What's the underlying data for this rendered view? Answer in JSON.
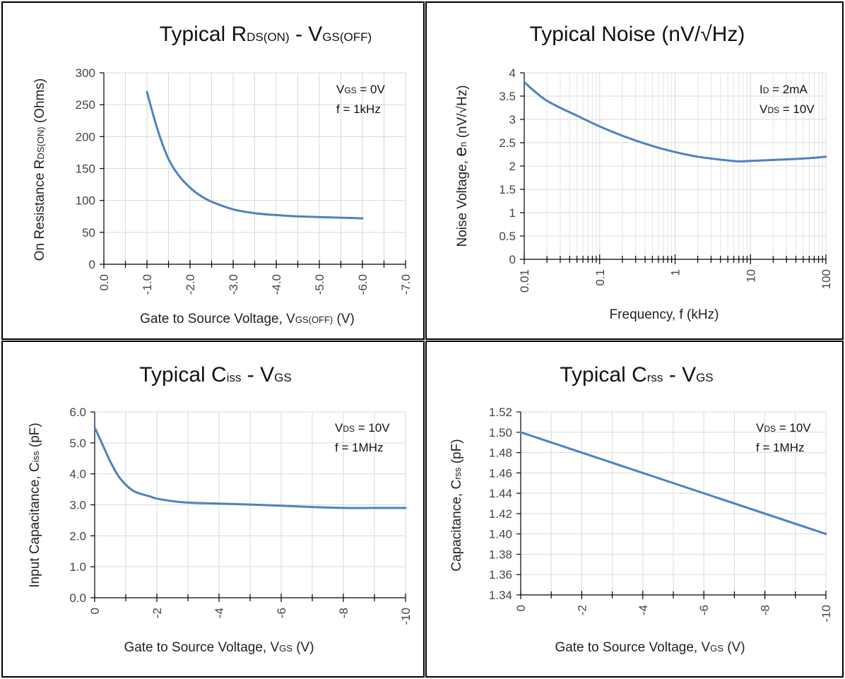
{
  "colors": {
    "series": "#4f81bd",
    "frame": "#000000",
    "grid": "#d9d9d9"
  },
  "chart_data": [
    {
      "id": "rds",
      "type": "line",
      "title_parts": [
        {
          "t": "Typical R",
          "sub": false
        },
        {
          "t": "DS(ON)",
          "sub": true
        },
        {
          "t": " - V",
          "sub": false
        },
        {
          "t": "GS(OFF)",
          "sub": true
        }
      ],
      "xlabel_parts": [
        {
          "t": "Gate to Source Voltage, V",
          "sub": false
        },
        {
          "t": "GS(OFF)",
          "sub": true
        },
        {
          "t": " (V)",
          "sub": false
        }
      ],
      "ylabel_parts": [
        {
          "t": "On Resistance R",
          "sub": false
        },
        {
          "t": "DS(ON)",
          "sub": true
        },
        {
          "t": " (Ohms)",
          "sub": false
        }
      ],
      "annotation_lines": [
        [
          {
            "t": "V",
            "sub": false
          },
          {
            "t": "GS",
            "sub": true
          },
          {
            "t": " = 0V",
            "sub": false
          }
        ],
        [
          {
            "t": "f = 1kHz",
            "sub": false
          }
        ]
      ],
      "x_ticks": [
        "0.0",
        "-1.0",
        "-2.0",
        "-3.0",
        "-4.0",
        "-5.0",
        "-6.0",
        "-7.0"
      ],
      "y_ticks": [
        "0",
        "50",
        "100",
        "150",
        "200",
        "250",
        "300"
      ],
      "xlim": [
        0,
        -7
      ],
      "ylim": [
        0,
        300
      ],
      "series": [
        {
          "x": [
            -1.0,
            -1.25,
            -1.5,
            -1.75,
            -2.0,
            -2.25,
            -2.5,
            -3.0,
            -3.5,
            -4.0,
            -4.5,
            -5.0,
            -5.5,
            -6.0
          ],
          "y": [
            270,
            210,
            165,
            138,
            120,
            107,
            98,
            86,
            80,
            77,
            75,
            74,
            73,
            72
          ]
        }
      ]
    },
    {
      "id": "noise",
      "type": "line",
      "title_parts": [
        {
          "t": "Typical Noise (nV/√Hz)",
          "sub": false
        }
      ],
      "xlabel_parts": [
        {
          "t": "Frequency, f (kHz)",
          "sub": false
        }
      ],
      "ylabel_parts": [
        {
          "t": "Noise Voltage, ",
          "sub": false
        },
        {
          "t": "e",
          "sub": false,
          "big": true
        },
        {
          "t": "n",
          "sub": true
        },
        {
          "t": " (nV/√Hz)",
          "sub": false
        }
      ],
      "annotation_lines": [
        [
          {
            "t": "I",
            "sub": false
          },
          {
            "t": "D",
            "sub": true
          },
          {
            "t": " = 2mA",
            "sub": false
          }
        ],
        [
          {
            "t": "V",
            "sub": false
          },
          {
            "t": "DS",
            "sub": true
          },
          {
            "t": " = 10V",
            "sub": false
          }
        ]
      ],
      "x_scale": "log",
      "x_ticks": [
        "0.01",
        "0.1",
        "1",
        "10",
        "100"
      ],
      "x_tick_values": [
        0.01,
        0.1,
        1,
        10,
        100
      ],
      "y_ticks": [
        "0",
        "0.5",
        "1",
        "1.5",
        "2",
        "2.5",
        "3",
        "3.5",
        "4"
      ],
      "xlim": [
        0.01,
        100
      ],
      "ylim": [
        0,
        4
      ],
      "series": [
        {
          "x": [
            0.01,
            0.015,
            0.02,
            0.03,
            0.05,
            0.1,
            0.2,
            0.5,
            1,
            2,
            5,
            7,
            10,
            20,
            50,
            100
          ],
          "y": [
            3.8,
            3.55,
            3.4,
            3.25,
            3.08,
            2.85,
            2.65,
            2.43,
            2.3,
            2.2,
            2.12,
            2.1,
            2.11,
            2.13,
            2.16,
            2.2
          ]
        }
      ]
    },
    {
      "id": "ciss",
      "type": "line",
      "title_parts": [
        {
          "t": "Typical C",
          "sub": false
        },
        {
          "t": "iss",
          "sub": true
        },
        {
          "t": " - V",
          "sub": false
        },
        {
          "t": "GS",
          "sub": true
        }
      ],
      "xlabel_parts": [
        {
          "t": "Gate to Source Voltage, V",
          "sub": false
        },
        {
          "t": "GS",
          "sub": true
        },
        {
          "t": " (V)",
          "sub": false
        }
      ],
      "ylabel_parts": [
        {
          "t": "Input Capacitance, C",
          "sub": false
        },
        {
          "t": "iss",
          "sub": true
        },
        {
          "t": " (pF)",
          "sub": false
        }
      ],
      "annotation_lines": [
        [
          {
            "t": "V",
            "sub": false
          },
          {
            "t": "DS",
            "sub": true
          },
          {
            "t": " = 10V",
            "sub": false
          }
        ],
        [
          {
            "t": "f = 1MHz",
            "sub": false
          }
        ]
      ],
      "x_ticks": [
        "0",
        "-2",
        "-4",
        "-6",
        "-8",
        "-10"
      ],
      "y_ticks": [
        "0.0",
        "1.0",
        "2.0",
        "3.0",
        "4.0",
        "5.0",
        "6.0"
      ],
      "xlim": [
        0,
        -10
      ],
      "ylim": [
        0,
        6
      ],
      "series": [
        {
          "x": [
            0,
            -0.25,
            -0.5,
            -0.75,
            -1.0,
            -1.25,
            -1.5,
            -1.75,
            -2.0,
            -2.5,
            -3.0,
            -4.0,
            -5.0,
            -6.0,
            -7.0,
            -8.0,
            -9.0,
            -10.0
          ],
          "y": [
            5.5,
            4.95,
            4.4,
            3.95,
            3.65,
            3.45,
            3.35,
            3.28,
            3.2,
            3.12,
            3.07,
            3.04,
            3.01,
            2.97,
            2.93,
            2.9,
            2.9,
            2.9
          ]
        }
      ]
    },
    {
      "id": "crss",
      "type": "line",
      "title_parts": [
        {
          "t": "Typical C",
          "sub": false
        },
        {
          "t": "rss",
          "sub": true
        },
        {
          "t": " - V",
          "sub": false
        },
        {
          "t": "GS",
          "sub": true
        }
      ],
      "xlabel_parts": [
        {
          "t": "Gate to Source Voltage, V",
          "sub": false
        },
        {
          "t": "GS",
          "sub": true
        },
        {
          "t": " (V)",
          "sub": false
        }
      ],
      "ylabel_parts": [
        {
          "t": "Capacitance, C",
          "sub": false
        },
        {
          "t": "rss",
          "sub": true
        },
        {
          "t": " (pF)",
          "sub": false
        }
      ],
      "annotation_lines": [
        [
          {
            "t": "V",
            "sub": false
          },
          {
            "t": "DS",
            "sub": true
          },
          {
            "t": " = 10V",
            "sub": false
          }
        ],
        [
          {
            "t": "f = 1MHz",
            "sub": false
          }
        ]
      ],
      "x_ticks": [
        "0",
        "-2",
        "-4",
        "-6",
        "-8",
        "-10"
      ],
      "y_ticks": [
        "1.34",
        "1.36",
        "1.38",
        "1.40",
        "1.42",
        "1.44",
        "1.46",
        "1.48",
        "1.50",
        "1.52"
      ],
      "xlim": [
        0,
        -10
      ],
      "ylim": [
        1.34,
        1.52
      ],
      "series": [
        {
          "x": [
            0,
            -10
          ],
          "y": [
            1.5,
            1.4
          ]
        }
      ]
    }
  ]
}
